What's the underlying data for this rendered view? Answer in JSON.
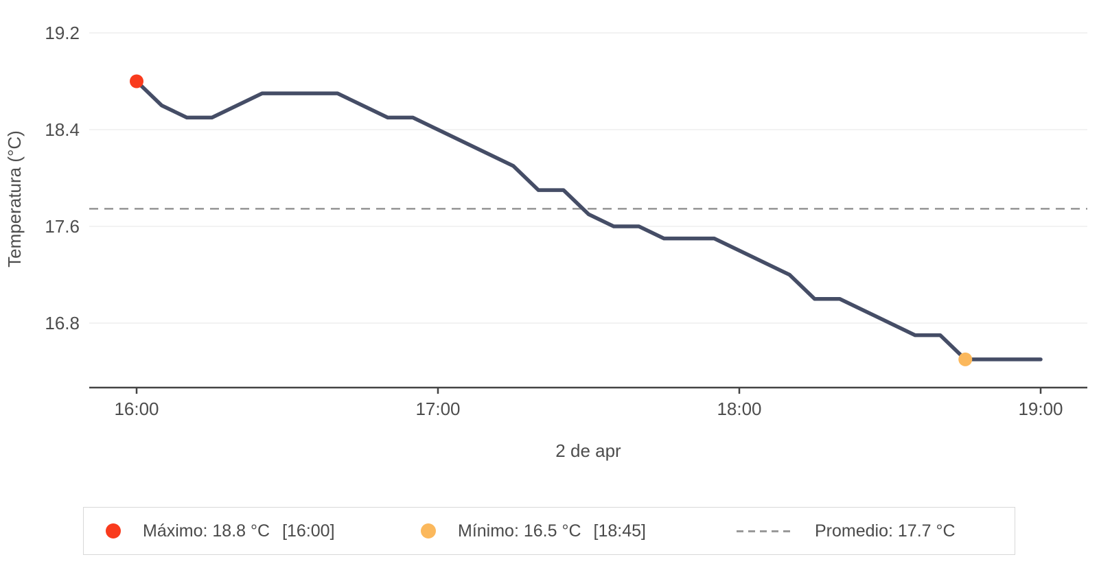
{
  "chart_data": {
    "type": "line",
    "title": "",
    "xlabel": "2 de apr",
    "ylabel": "Temperatura (°C)",
    "grid": true,
    "x_ticks": [
      "16:00",
      "17:00",
      "18:00",
      "19:00"
    ],
    "y_ticks": [
      "19.2",
      "18.4",
      "17.6",
      "16.8"
    ],
    "ylim": [
      16.3,
      19.2
    ],
    "x": [
      "16:00",
      "16:05",
      "16:10",
      "16:15",
      "16:20",
      "16:25",
      "16:30",
      "16:35",
      "16:40",
      "16:45",
      "16:50",
      "16:55",
      "17:00",
      "17:05",
      "17:10",
      "17:15",
      "17:20",
      "17:25",
      "17:30",
      "17:35",
      "17:40",
      "17:45",
      "17:50",
      "17:55",
      "18:00",
      "18:05",
      "18:10",
      "18:15",
      "18:20",
      "18:25",
      "18:30",
      "18:35",
      "18:40",
      "18:45",
      "18:50",
      "18:55",
      "19:00"
    ],
    "series": [
      {
        "name": "Temperatura",
        "color": "#454d66",
        "values": [
          18.8,
          18.6,
          18.5,
          18.5,
          18.6,
          18.7,
          18.7,
          18.7,
          18.7,
          18.6,
          18.5,
          18.5,
          18.4,
          18.3,
          18.2,
          18.1,
          17.9,
          17.9,
          17.7,
          17.6,
          17.6,
          17.5,
          17.5,
          17.5,
          17.4,
          17.3,
          17.2,
          17.0,
          17.0,
          16.9,
          16.8,
          16.7,
          16.7,
          16.5,
          16.5,
          16.5,
          16.5
        ]
      }
    ],
    "annotations": {
      "max": {
        "value": 18.8,
        "time": "16:00",
        "color": "#f93b1d"
      },
      "min": {
        "value": 16.5,
        "time": "18:45",
        "color": "#fbb85c"
      },
      "average": {
        "value": 17.7,
        "line_style": "dashed",
        "color": "#999999"
      }
    },
    "legend": {
      "position": "bottom",
      "items": [
        {
          "marker": "dot",
          "color": "#f93b1d",
          "label": "Máximo: 18.8 °C",
          "bracket": "[16:00]"
        },
        {
          "marker": "dot",
          "color": "#fbb85c",
          "label": "Mínimo: 16.5 °C",
          "bracket": "[18:45]"
        },
        {
          "marker": "dash",
          "color": "#999999",
          "label": "Promedio: 17.7 °C",
          "bracket": ""
        }
      ]
    },
    "colors": {
      "line": "#454d66",
      "grid": "#ededed",
      "axis": "#444444",
      "tick_text": "#4d4d4d",
      "average_line": "#999999"
    }
  }
}
